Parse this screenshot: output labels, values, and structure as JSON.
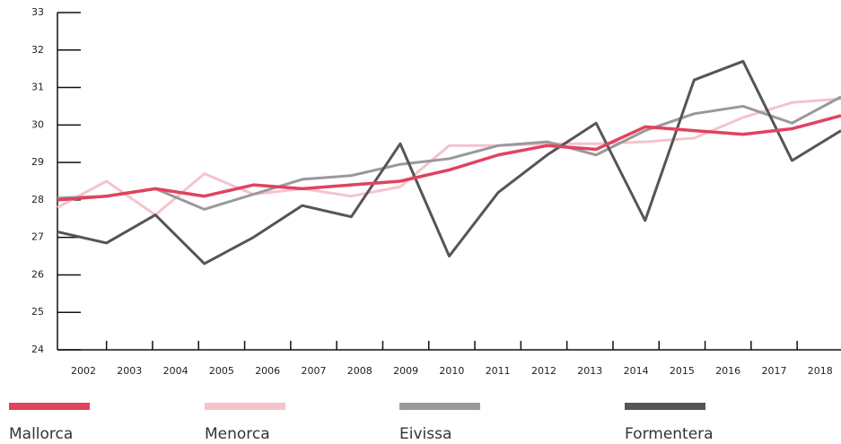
{
  "chart_data": {
    "type": "line",
    "categories": [
      "2002",
      "2003",
      "2004",
      "2005",
      "2006",
      "2007",
      "2008",
      "2009",
      "2010",
      "2011",
      "2012",
      "2013",
      "2014",
      "2015",
      "2016",
      "2017",
      "2018"
    ],
    "series": [
      {
        "name": "Mallorca",
        "color": "#e0435e",
        "values": [
          28.0,
          28.1,
          28.3,
          28.1,
          28.4,
          28.3,
          28.4,
          28.5,
          28.8,
          29.2,
          29.45,
          29.35,
          29.95,
          29.85,
          29.75,
          29.9,
          30.25
        ]
      },
      {
        "name": "Menorca",
        "color": "#f5c3cc",
        "values": [
          27.8,
          28.5,
          27.6,
          28.7,
          28.15,
          28.3,
          28.1,
          28.35,
          29.45,
          29.45,
          29.5,
          29.5,
          29.55,
          29.65,
          30.2,
          30.6,
          30.7
        ]
      },
      {
        "name": "Eivissa",
        "color": "#999999",
        "values": [
          28.05,
          28.1,
          28.3,
          27.75,
          28.15,
          28.55,
          28.65,
          28.95,
          29.1,
          29.45,
          29.55,
          29.2,
          29.85,
          30.3,
          30.5,
          30.05,
          30.75
        ]
      },
      {
        "name": "Formentera",
        "color": "#555555",
        "values": [
          27.15,
          26.85,
          27.6,
          26.3,
          27.0,
          27.85,
          27.55,
          29.5,
          26.5,
          28.2,
          29.2,
          30.05,
          27.45,
          31.2,
          31.7,
          29.05,
          29.85
        ]
      }
    ],
    "ylim": [
      24,
      33
    ],
    "yticks": [
      24,
      25,
      26,
      27,
      28,
      29,
      30,
      31,
      32,
      33
    ],
    "legend": "bottom"
  }
}
